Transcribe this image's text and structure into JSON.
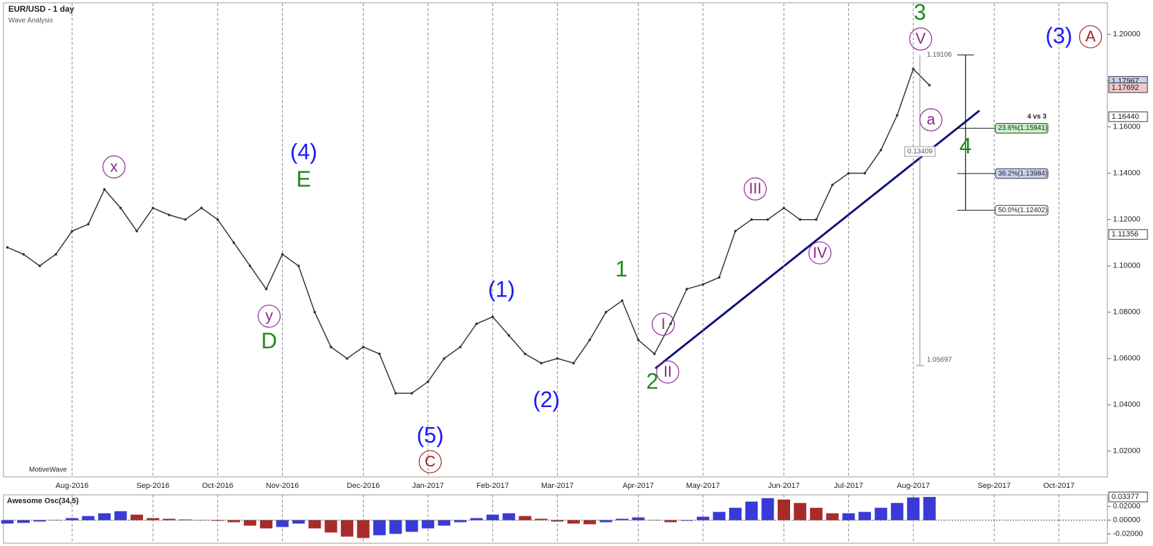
{
  "chart_data": [
    {
      "type": "line",
      "title": "EUR/USD - 1 day",
      "subtitle": "Wave Analysis",
      "watermark": "MotiveWave",
      "categories": [
        null,
        null,
        null,
        null,
        "Aug-2016",
        null,
        null,
        null,
        null,
        "Sep-2016",
        null,
        null,
        null,
        "Oct-2016",
        null,
        null,
        null,
        "Nov-2016",
        null,
        null,
        null,
        null,
        "Dec-2016",
        null,
        null,
        null,
        "Jan-2017",
        null,
        null,
        null,
        "Feb-2017",
        null,
        null,
        null,
        "Mar-2017",
        null,
        null,
        null,
        null,
        "Apr-2017",
        null,
        null,
        null,
        "May-2017",
        null,
        null,
        null,
        null,
        "Jun-2017",
        null,
        null,
        null,
        "Jul-2017",
        null,
        null,
        null,
        "Aug-2017",
        null,
        null,
        null,
        null,
        "Sep-2017",
        null,
        null,
        null,
        "Oct-2017",
        null,
        null,
        null
      ],
      "values": [
        1.108,
        1.105,
        1.1,
        1.105,
        1.115,
        1.118,
        1.133,
        1.125,
        1.115,
        1.125,
        1.122,
        1.12,
        1.125,
        1.12,
        1.11,
        1.1,
        1.09,
        1.105,
        1.1,
        1.08,
        1.065,
        1.06,
        1.065,
        1.062,
        1.045,
        1.045,
        1.05,
        1.06,
        1.065,
        1.075,
        1.078,
        1.07,
        1.062,
        1.058,
        1.06,
        1.058,
        1.068,
        1.08,
        1.085,
        1.068,
        1.062,
        1.075,
        1.09,
        1.092,
        1.095,
        1.115,
        1.12,
        1.12,
        1.125,
        1.12,
        1.12,
        1.135,
        1.14,
        1.14,
        1.15,
        1.165,
        1.185,
        1.178,
        null,
        null,
        null,
        null,
        null,
        null,
        null,
        null,
        null,
        null,
        null
      ],
      "color": "#333333",
      "ylim": [
        1.0086,
        1.2133
      ],
      "yticks": [
        {
          "value": 1.02,
          "label": "1.02000"
        },
        {
          "value": 1.04,
          "label": "1.04000"
        },
        {
          "value": 1.06,
          "label": "1.06000"
        },
        {
          "value": 1.08,
          "label": "1.08000"
        },
        {
          "value": 1.1,
          "label": "1.10000"
        },
        {
          "value": 1.12,
          "label": "1.12000"
        },
        {
          "value": 1.14,
          "label": "1.14000"
        },
        {
          "value": 1.16,
          "label": "1.16000"
        },
        {
          "value": 1.18,
          "label": "1.18000"
        },
        {
          "value": 1.2,
          "label": "1.20000"
        }
      ],
      "grid": true,
      "price_markers": [
        {
          "value": 1.17967,
          "label": "1.17967",
          "color": "#c8d2f0"
        },
        {
          "value": 1.17692,
          "label": "1.17692",
          "color": "#f0c8c8"
        },
        {
          "value": 1.1644,
          "label": "1.16440",
          "color": "#ffffff"
        },
        {
          "value": 1.11356,
          "label": "1.11356",
          "color": "#ffffff"
        }
      ],
      "fib_title": "4 vs 3",
      "fib_levels": [
        {
          "value": 1.15941,
          "label": "23.6%(1.15941)",
          "color": "#c8f0c8"
        },
        {
          "value": 1.13984,
          "label": "38.2%(1.13984)",
          "color": "#c8d2f0"
        },
        {
          "value": 1.12402,
          "label": "50.0%(1.12402)",
          "color": "#ffffff"
        }
      ],
      "measure": {
        "high": {
          "value": 1.19106,
          "label": "1.19106"
        },
        "low": {
          "value": 1.05697,
          "label": "1.05697"
        },
        "range": "0.13409"
      },
      "annotations": [
        {
          "text": "3",
          "color": "#1f8a1f",
          "circled": false
        },
        {
          "text": "V",
          "color": "#8b2a8b",
          "circled": true
        },
        {
          "text": "(3)",
          "color": "#1a1aff",
          "circled": false
        },
        {
          "text": "A",
          "color": "#a01c1c",
          "circled": true
        },
        {
          "text": "a",
          "color": "#8b2a8b",
          "circled": true
        },
        {
          "text": "4",
          "color": "#1f8a1f",
          "circled": false
        },
        {
          "text": "III",
          "color": "#8b2a8b",
          "circled": true
        },
        {
          "text": "IV",
          "color": "#8b2a8b",
          "circled": true
        },
        {
          "text": "1",
          "color": "#1f8a1f",
          "circled": false
        },
        {
          "text": "I",
          "color": "#8b2a8b",
          "circled": true
        },
        {
          "text": "II",
          "color": "#8b2a8b",
          "circled": true
        },
        {
          "text": "2",
          "color": "#1f8a1f",
          "circled": false
        },
        {
          "text": "(1)",
          "color": "#1a1aff",
          "circled": false
        },
        {
          "text": "(2)",
          "color": "#1a1aff",
          "circled": false
        },
        {
          "text": "(5)",
          "color": "#1a1aff",
          "circled": false
        },
        {
          "text": "C",
          "color": "#a01c1c",
          "circled": true
        },
        {
          "text": "(4)",
          "color": "#1a1aff",
          "circled": false
        },
        {
          "text": "E",
          "color": "#1f8a1f",
          "circled": false
        },
        {
          "text": "x",
          "color": "#8b2a8b",
          "circled": true
        },
        {
          "text": "y",
          "color": "#8b2a8b",
          "circled": true
        },
        {
          "text": "D",
          "color": "#1f8a1f",
          "circled": false
        }
      ]
    },
    {
      "type": "bar",
      "title": "Awesome Osc(34,5)",
      "values": [
        -0.005,
        -0.004,
        -0.002,
        0.0,
        0.003,
        0.006,
        0.01,
        0.013,
        0.008,
        0.003,
        0.002,
        0.001,
        0.0,
        -0.001,
        -0.003,
        -0.008,
        -0.012,
        -0.01,
        -0.005,
        -0.012,
        -0.018,
        -0.024,
        -0.026,
        -0.022,
        -0.02,
        -0.017,
        -0.012,
        -0.008,
        -0.003,
        0.003,
        0.008,
        0.01,
        0.006,
        0.002,
        -0.002,
        -0.005,
        -0.006,
        -0.003,
        0.002,
        0.004,
        0.0,
        -0.003,
        -0.001,
        0.005,
        0.012,
        0.018,
        0.027,
        0.032,
        0.03,
        0.025,
        0.018,
        0.01,
        0.01,
        0.012,
        0.018,
        0.025,
        0.033,
        0.0338,
        null,
        null,
        null,
        null,
        null,
        null,
        null,
        null,
        null,
        null,
        null
      ],
      "up_color": "#3a3ad6",
      "down_color": "#a82b2b",
      "ylim": [
        -0.0326,
        0.0368
      ],
      "yticks": [
        {
          "value": 0.02,
          "label": "0.02000"
        },
        {
          "value": 0,
          "label": "0.00000"
        },
        {
          "value": -0.02,
          "label": "-0.02000"
        }
      ],
      "last": {
        "value": 0.03377,
        "label": "0.03377"
      }
    }
  ]
}
